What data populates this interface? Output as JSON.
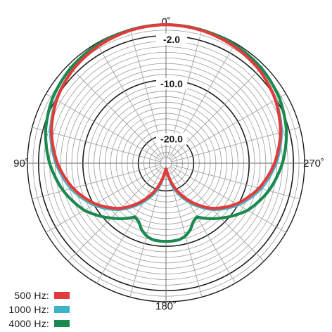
{
  "chart_data": {
    "type": "polar-line",
    "angle_labels": [
      "0˚",
      "90˚",
      "180˚",
      "270˚"
    ],
    "ring_labels": [
      "-2.0",
      "-10.0",
      "-20.0"
    ],
    "radial_range_db": [
      -25,
      0
    ],
    "angle_step_deg": 15,
    "series": [
      {
        "name": "500 Hz:",
        "color": "#e23b3b",
        "angle_deg": [
          0,
          15,
          30,
          45,
          60,
          75,
          90,
          105,
          120,
          135,
          150,
          165,
          170,
          175,
          180
        ],
        "db": [
          0,
          -0.2,
          -0.6,
          -1.2,
          -2.2,
          -3.6,
          -5.4,
          -7.6,
          -10.3,
          -13.5,
          -17.5,
          -21.5,
          -22.8,
          -23.6,
          -24
        ]
      },
      {
        "name": "1000 Hz:",
        "color": "#3cb3c6",
        "angle_deg": [
          0,
          15,
          30,
          45,
          60,
          75,
          90,
          105,
          120,
          135,
          150,
          165,
          170,
          175,
          180
        ],
        "db": [
          0,
          -0.2,
          -0.5,
          -1.1,
          -2.0,
          -3.3,
          -5.0,
          -7.1,
          -9.8,
          -13.0,
          -16.8,
          -20.5,
          -22.0,
          -23.0,
          -23.5
        ]
      },
      {
        "name": "4000 Hz:",
        "color": "#1a8a4e",
        "angle_deg": [
          0,
          15,
          30,
          45,
          60,
          75,
          90,
          105,
          120,
          135,
          150,
          155,
          160,
          165,
          170,
          175,
          180
        ],
        "db": [
          0,
          -0.1,
          -0.3,
          -0.7,
          -1.4,
          -2.5,
          -4.0,
          -5.8,
          -8.0,
          -11.0,
          -13.8,
          -13.4,
          -12.2,
          -11.4,
          -11.0,
          -10.9,
          -10.9
        ]
      }
    ]
  }
}
